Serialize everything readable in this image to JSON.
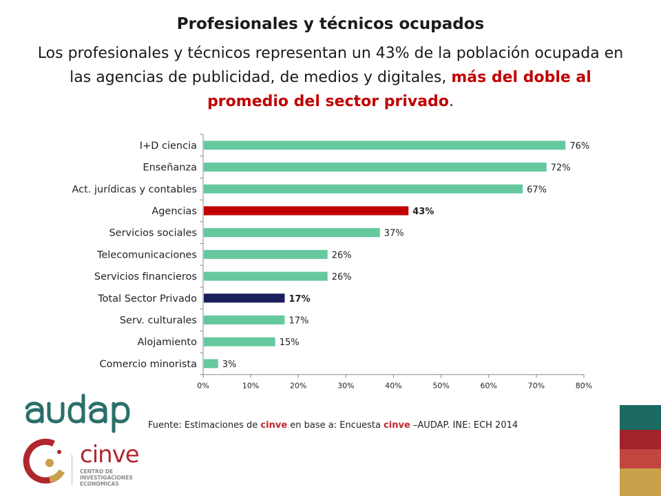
{
  "header": {
    "title": "Profesionales y técnicos ocupados",
    "subtitle_part1": "Los profesionales y técnicos representan un 43% de la población ocupada en las agencias de publicidad, de medios y digitales, ",
    "subtitle_highlight": "más del doble al promedio del sector privado",
    "subtitle_end": "."
  },
  "chart_data": {
    "type": "bar",
    "orientation": "horizontal",
    "categories": [
      "I+D ciencia",
      "Enseñanza",
      "Act. jurídicas y contables",
      "Agencias",
      "Servicios sociales",
      "Telecomunicaciones",
      "Servicios financieros",
      "Total Sector Privado",
      "Serv. culturales",
      "Alojamiento",
      "Comercio minorista"
    ],
    "values": [
      76,
      72,
      67,
      43,
      37,
      26,
      26,
      17,
      17,
      15,
      3
    ],
    "value_labels": [
      "76%",
      "72%",
      "67%",
      "43%",
      "37%",
      "26%",
      "26%",
      "17%",
      "17%",
      "15%",
      "3%"
    ],
    "bar_colors": [
      "#66c89e",
      "#66c89e",
      "#66c89e",
      "#c00000",
      "#66c89e",
      "#66c89e",
      "#66c89e",
      "#1a1f5c",
      "#66c89e",
      "#66c89e",
      "#66c89e"
    ],
    "bold_labels": [
      false,
      false,
      false,
      true,
      false,
      false,
      false,
      true,
      false,
      false,
      false
    ],
    "xlim": [
      0,
      80
    ],
    "xticks": [
      "0%",
      "10%",
      "20%",
      "30%",
      "40%",
      "50%",
      "60%",
      "70%",
      "80%"
    ],
    "grid": false
  },
  "source": {
    "prefix": "Fuente: Estimaciones de ",
    "cinve1": "cinve",
    "middle": " en base a: Encuesta ",
    "cinve2": "cinve",
    "suffix": " –AUDAP. INE: ECH 2014"
  },
  "logos": {
    "audap_text": "audap",
    "cinve_name": "cinve",
    "cinve_subtitle": "Centro de Investigaciones Económicas"
  },
  "colors": {
    "accent_red": "#c00000",
    "bar_green": "#66c89e",
    "bar_navy": "#1a1f5c",
    "audap_teal": "#2b6f6a",
    "deco": [
      "#1b6b62",
      "#a3232b",
      "#c0463f",
      "#c9a14a"
    ]
  }
}
